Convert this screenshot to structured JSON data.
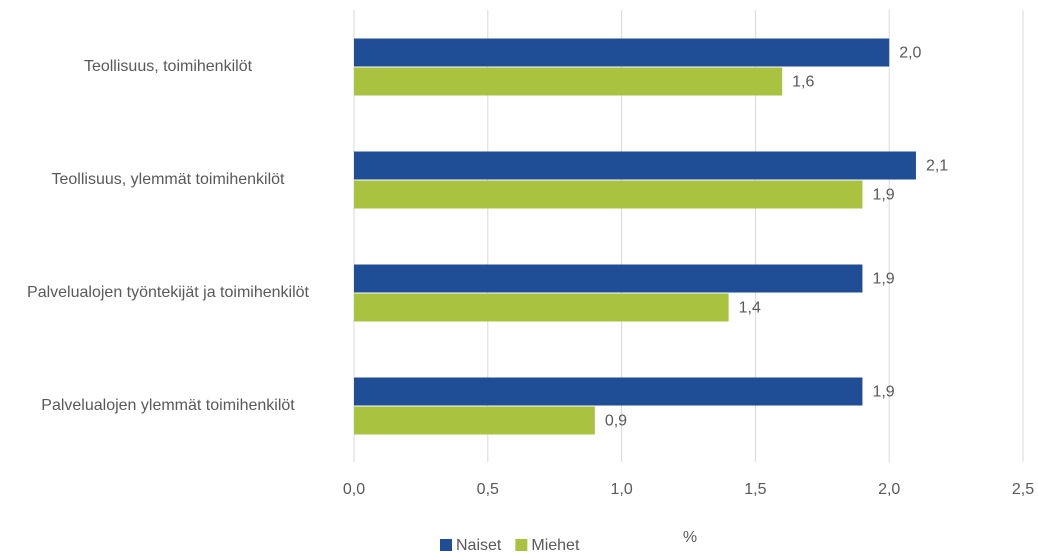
{
  "chart_data": {
    "type": "barh",
    "categories": [
      "Teollisuus, toimihenkilöt",
      "Teollisuus, ylemmät toimihenkilöt",
      "Palvelualojen työntekijät ja toimihenkilöt",
      "Palvelualojen ylemmät toimihenkilöt"
    ],
    "series": [
      {
        "name": "Naiset",
        "color": "#1f4e96",
        "values": [
          2.0,
          2.1,
          1.9,
          1.9
        ],
        "value_labels": [
          "2,0",
          "2,1",
          "1,9",
          "1,9"
        ]
      },
      {
        "name": "Miehet",
        "color": "#a9c23f",
        "values": [
          1.6,
          1.9,
          1.4,
          0.9
        ],
        "value_labels": [
          "1,6",
          "1,9",
          "1,4",
          "0,9"
        ]
      }
    ],
    "xlabel": "%",
    "xlim": [
      0,
      2.5
    ],
    "xticks": [
      {
        "value": 0,
        "label": "0,0"
      },
      {
        "value": 0.5,
        "label": "0,5"
      },
      {
        "value": 1,
        "label": "1,0"
      },
      {
        "value": 1.5,
        "label": "1,5"
      },
      {
        "value": 2,
        "label": "2,0"
      },
      {
        "value": 2.5,
        "label": "2,5"
      }
    ],
    "grid": true,
    "legend": "bottom"
  }
}
